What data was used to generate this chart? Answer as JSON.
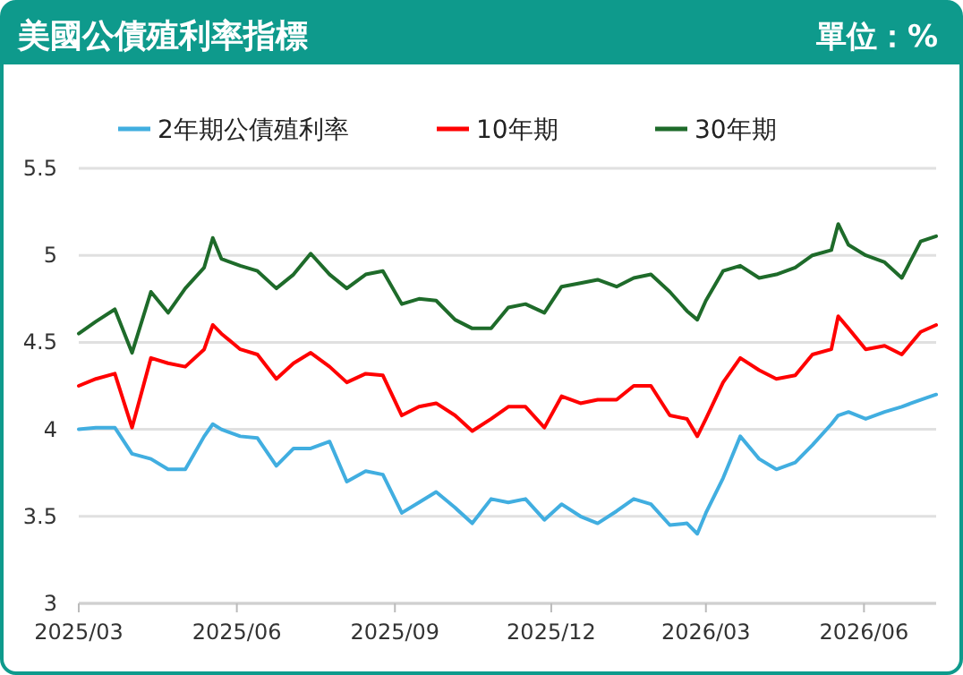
{
  "chart_data": {
    "type": "line",
    "title": "美國公債殖利率指標",
    "subtitle": "單位：%",
    "x": [
      "2025-03-01",
      "2025-03-11",
      "2025-03-22",
      "2025-04-01",
      "2025-04-12",
      "2025-04-22",
      "2025-05-02",
      "2025-05-13",
      "2025-05-18",
      "2025-05-23",
      "2025-06-03",
      "2025-06-13",
      "2025-06-24",
      "2025-07-04",
      "2025-07-14",
      "2025-07-25",
      "2025-08-04",
      "2025-08-15",
      "2025-08-25",
      "2025-09-05",
      "2025-09-15",
      "2025-09-25",
      "2025-10-06",
      "2025-10-16",
      "2025-10-27",
      "2025-11-06",
      "2025-11-16",
      "2025-11-27",
      "2025-12-07",
      "2025-12-18",
      "2025-12-28",
      "2026-01-08",
      "2026-01-18",
      "2026-01-28",
      "2026-02-08",
      "2026-02-18",
      "2026-02-24",
      "2026-03-01",
      "2026-03-11",
      "2026-03-21",
      "2026-04-01",
      "2026-04-11",
      "2026-04-22",
      "2026-05-02",
      "2026-05-13",
      "2026-05-17",
      "2026-05-23",
      "2026-06-02",
      "2026-06-13",
      "2026-06-23",
      "2026-07-04",
      "2026-07-13"
    ],
    "series": [
      {
        "name": "2年期公債殖利率",
        "color": "#41aee0",
        "values": [
          4.0,
          4.01,
          4.01,
          3.86,
          3.83,
          3.77,
          3.77,
          3.96,
          4.03,
          4.0,
          3.96,
          3.95,
          3.79,
          3.89,
          3.89,
          3.93,
          3.7,
          3.76,
          3.74,
          3.52,
          3.58,
          3.64,
          3.55,
          3.46,
          3.6,
          3.58,
          3.6,
          3.48,
          3.57,
          3.5,
          3.46,
          3.53,
          3.6,
          3.57,
          3.45,
          3.46,
          3.4,
          3.52,
          3.72,
          3.96,
          3.83,
          3.77,
          3.81,
          3.91,
          4.03,
          4.08,
          4.1,
          4.06,
          4.1,
          4.13,
          4.17,
          4.2
        ]
      },
      {
        "name": "10年期",
        "color": "#ff0000",
        "values": [
          4.25,
          4.29,
          4.32,
          4.01,
          4.41,
          4.38,
          4.36,
          4.46,
          4.6,
          4.55,
          4.46,
          4.43,
          4.29,
          4.38,
          4.44,
          4.36,
          4.27,
          4.32,
          4.31,
          4.08,
          4.13,
          4.15,
          4.08,
          3.99,
          4.06,
          4.13,
          4.13,
          4.01,
          4.19,
          4.15,
          4.17,
          4.17,
          4.25,
          4.25,
          4.08,
          4.06,
          3.96,
          4.06,
          4.27,
          4.41,
          4.34,
          4.29,
          4.31,
          4.43,
          4.46,
          4.65,
          4.58,
          4.46,
          4.48,
          4.43,
          4.56,
          4.6
        ]
      },
      {
        "name": "30年期",
        "color": "#1e6b2a",
        "values": [
          4.55,
          4.62,
          4.69,
          4.44,
          4.79,
          4.67,
          4.81,
          4.93,
          5.1,
          4.98,
          4.94,
          4.91,
          4.81,
          4.89,
          5.01,
          4.89,
          4.81,
          4.89,
          4.91,
          4.72,
          4.75,
          4.74,
          4.63,
          4.58,
          4.58,
          4.7,
          4.72,
          4.67,
          4.82,
          4.84,
          4.86,
          4.82,
          4.87,
          4.89,
          4.79,
          4.68,
          4.63,
          4.74,
          4.91,
          4.94,
          4.87,
          4.89,
          4.93,
          5.0,
          5.03,
          5.18,
          5.06,
          5.0,
          4.96,
          4.87,
          5.08,
          5.11
        ]
      }
    ],
    "xlim": [
      "2025-03-01",
      "2026-07-13"
    ],
    "xticks": [
      {
        "value": "2025-03-01",
        "label": "2025/03"
      },
      {
        "value": "2025-06-01",
        "label": "2025/06"
      },
      {
        "value": "2025-09-01",
        "label": "2025/09"
      },
      {
        "value": "2025-12-01",
        "label": "2025/12"
      },
      {
        "value": "2026-03-01",
        "label": "2026/03"
      },
      {
        "value": "2026-06-01",
        "label": "2026/06"
      }
    ],
    "ylim": [
      3,
      5.5
    ],
    "yticks": [
      3,
      3.5,
      4,
      4.5,
      5,
      5.5
    ],
    "grid": "y",
    "legend": "top",
    "marker": "none",
    "line_style": "solid"
  }
}
